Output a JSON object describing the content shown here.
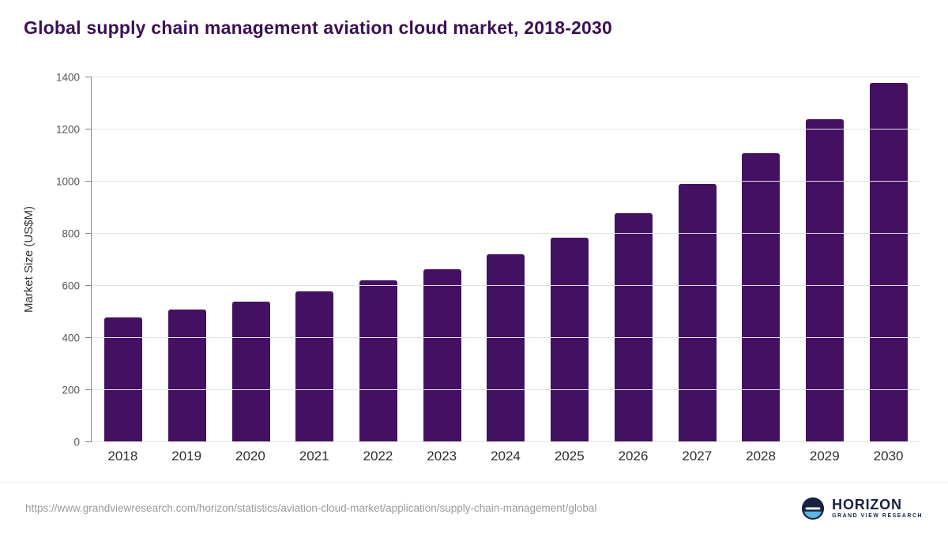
{
  "title": "Global supply chain management aviation cloud market, 2018-2030",
  "footer": {
    "source_url": "https://www.grandviewresearch.com/horizon/statistics/aviation-cloud-market/application/supply-chain-management/global",
    "logo_title": "HORIZON",
    "logo_subtitle": "GRAND VIEW RESEARCH"
  },
  "colors": {
    "bar": "#431062",
    "title": "#3b1053",
    "grid": "#e3e3e3",
    "axis": "#868686",
    "tick_text": "#555555",
    "xlabel_text": "#2e2e2e",
    "url_text": "#9a9a9a",
    "logo_navy": "#16223f",
    "logo_blue": "#58b7e4"
  },
  "chart_data": {
    "type": "bar",
    "categories": [
      "2018",
      "2019",
      "2020",
      "2021",
      "2022",
      "2023",
      "2024",
      "2025",
      "2026",
      "2027",
      "2028",
      "2029",
      "2030"
    ],
    "values": [
      480,
      510,
      540,
      580,
      620,
      665,
      720,
      785,
      880,
      990,
      1110,
      1240,
      1380
    ],
    "title": "Global supply chain management aviation cloud market, 2018-2030",
    "xlabel": "",
    "ylabel": "Market Size (US$M)",
    "ylim": [
      0,
      1400
    ],
    "yticks": [
      0,
      200,
      400,
      600,
      800,
      1000,
      1200,
      1400
    ],
    "grid": true,
    "legend_position": "none",
    "bar_color": "#431062"
  }
}
